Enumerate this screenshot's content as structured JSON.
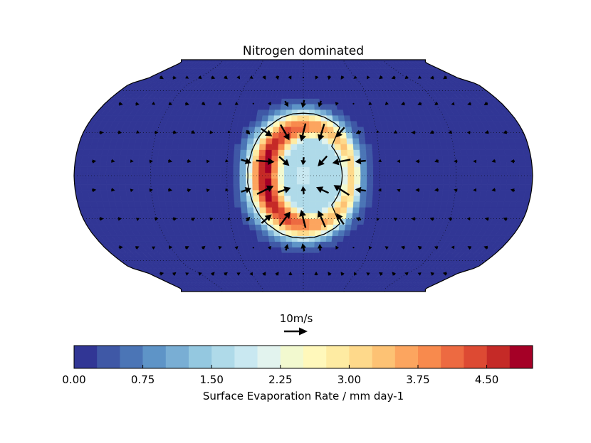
{
  "chart_data": {
    "type": "heatmap",
    "title": "Nitrogen dominated",
    "projection": "Robinson",
    "quiver_key": {
      "label": "10m/s",
      "value": 10,
      "units": "m/s"
    },
    "colorbar": {
      "label": "Surface Evaporation Rate / mm day-1",
      "vmin": 0.0,
      "vmax": 5.0,
      "n_levels": 20,
      "tick_values": [
        0.0,
        0.75,
        1.5,
        2.25,
        3.0,
        3.75,
        4.5
      ],
      "tick_labels": [
        "0.00",
        "0.75",
        "1.50",
        "2.25",
        "3.00",
        "3.75",
        "4.50"
      ],
      "colors": [
        "#313695",
        "#3f58a6",
        "#4b75b6",
        "#5e94c7",
        "#79aed4",
        "#94c8e0",
        "#afdae9",
        "#c9e8f1",
        "#e2f3ee",
        "#f2f9cf",
        "#fff8bb",
        "#feeba2",
        "#fed98b",
        "#fdc274",
        "#fca55f",
        "#f88a4d",
        "#ed6a41",
        "#dd4a33",
        "#c52a27",
        "#a50026"
      ]
    },
    "field_description": {
      "substellar_point": {
        "lon": 0,
        "lat": 0
      },
      "ring_peak_value": 4.8,
      "ring_center_value": 1.8,
      "background_value": 0.1,
      "contour_level": 2.0
    },
    "axes": {
      "xlabel": "",
      "ylabel": "",
      "lon_range": [
        -180,
        180
      ],
      "lat_range": [
        -90,
        90
      ],
      "gridlines": "dotted",
      "meridians_every_deg": 60,
      "parallels_every_deg": 30
    }
  }
}
